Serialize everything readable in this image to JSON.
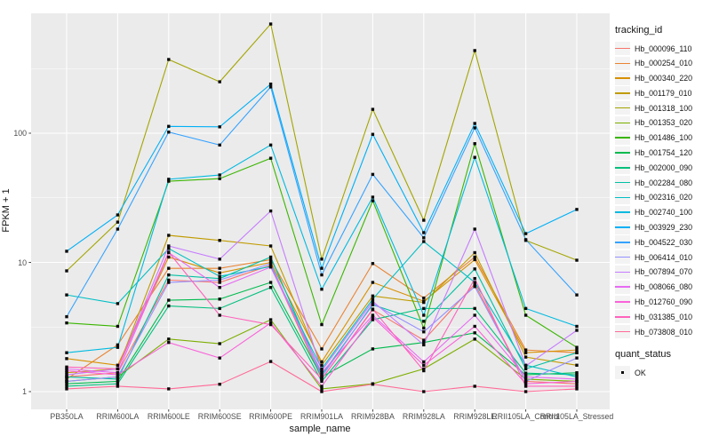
{
  "y_axis": {
    "title": "FPKM + 1",
    "tick_labels": [
      "1",
      "10",
      "100"
    ]
  },
  "x_axis": {
    "title": "sample_name"
  },
  "legend": {
    "tracking_title": "tracking_id",
    "quant_title": "quant_status",
    "quant_items": [
      {
        "label": "OK"
      }
    ]
  },
  "chart_data": {
    "type": "line",
    "title": "",
    "xlabel": "sample_name",
    "ylabel": "FPKM + 1",
    "yscale": "log10",
    "yticks": [
      1,
      10,
      100
    ],
    "ylim": [
      0.73,
      850
    ],
    "grid": true,
    "legend_position": "right",
    "panel_background": "#ebebeb",
    "gridline_color": "#ffffff",
    "point_shape": "filled-square",
    "point_color": "#0a0a0a",
    "categories": [
      "PB350LA",
      "RRIM600LA",
      "RRIM600LE",
      "RRIM600SE",
      "RRIM600PE",
      "RRIM901LA",
      "RRIM928BA",
      "RRIM928LA",
      "RRIM928LE",
      "RRII105LA_Control",
      "RRII105LA_Stressed"
    ],
    "series": [
      {
        "name": "Hb_000096_110",
        "color": "#F8766D",
        "values": [
          1.3,
          1.4,
          7.3,
          7.0,
          9.5,
          1.25,
          4.3,
          2.5,
          6.8,
          1.2,
          1.15
        ]
      },
      {
        "name": "Hb_000254_010",
        "color": "#EA8331",
        "values": [
          1.25,
          2.3,
          9.0,
          9.0,
          10.5,
          2.14,
          9.8,
          5.3,
          11.0,
          2.1,
          2.0
        ]
      },
      {
        "name": "Hb_000340_220",
        "color": "#D89000",
        "values": [
          1.8,
          1.6,
          11.0,
          8.3,
          10.0,
          1.7,
          7.0,
          5.0,
          10.5,
          2.0,
          2.1
        ]
      },
      {
        "name": "Hb_001179_010",
        "color": "#C09B00",
        "values": [
          1.4,
          1.5,
          16.2,
          14.8,
          13.4,
          1.6,
          5.5,
          4.9,
          11.9,
          1.85,
          1.6
        ]
      },
      {
        "name": "Hb_001318_100",
        "color": "#A3A500",
        "values": [
          8.6,
          20.5,
          372,
          250,
          700,
          10.6,
          153,
          21.2,
          436,
          14.8,
          10.4
        ]
      },
      {
        "name": "Hb_001353_020",
        "color": "#7CAE00",
        "values": [
          1.2,
          1.3,
          2.55,
          2.35,
          3.6,
          1.05,
          1.15,
          1.5,
          2.55,
          1.25,
          1.2
        ]
      },
      {
        "name": "Hb_001486_100",
        "color": "#39B600",
        "values": [
          3.4,
          3.2,
          42.5,
          44.5,
          64,
          3.3,
          30,
          3.1,
          83,
          3.9,
          2.2
        ]
      },
      {
        "name": "Hb_001754_120",
        "color": "#00BB4E",
        "values": [
          1.15,
          1.2,
          5.1,
          5.2,
          7.0,
          1.3,
          2.14,
          2.4,
          2.85,
          1.35,
          1.4
        ]
      },
      {
        "name": "Hb_002000_090",
        "color": "#00BF7D",
        "values": [
          1.1,
          1.15,
          4.6,
          4.4,
          6.4,
          1.2,
          3.6,
          4.4,
          4.4,
          1.39,
          1.35
        ]
      },
      {
        "name": "Hb_002284_080",
        "color": "#00C1A3",
        "values": [
          1.3,
          1.25,
          8.0,
          7.5,
          11.0,
          1.35,
          4.7,
          3.5,
          8.9,
          1.5,
          2.0
        ]
      },
      {
        "name": "Hb_002316_020",
        "color": "#00BFC4",
        "values": [
          5.6,
          4.8,
          12.8,
          7.8,
          9.3,
          1.5,
          5.2,
          14.5,
          7.0,
          1.6,
          1.3
        ]
      },
      {
        "name": "Hb_002740_100",
        "color": "#00BAE0",
        "values": [
          2.0,
          2.2,
          44,
          47.5,
          81,
          6.2,
          32,
          3.9,
          65,
          4.4,
          3.2
        ]
      },
      {
        "name": "Hb_003929_230",
        "color": "#00B0F6",
        "values": [
          12.2,
          23.3,
          113,
          112,
          240,
          9.0,
          98,
          17,
          119,
          16.7,
          25.7
        ]
      },
      {
        "name": "Hb_004522_030",
        "color": "#35A2FF",
        "values": [
          3.8,
          18.1,
          102,
          81,
          228,
          8.0,
          48,
          15.5,
          110,
          15.0,
          5.6
        ]
      },
      {
        "name": "Hb_006414_010",
        "color": "#9590FF",
        "values": [
          1.2,
          1.3,
          7.0,
          7.3,
          9.8,
          1.3,
          4.8,
          2.9,
          6.5,
          1.2,
          1.82
        ]
      },
      {
        "name": "Hb_007894_070",
        "color": "#C77CFF",
        "values": [
          1.35,
          1.5,
          13.4,
          10.6,
          25,
          1.45,
          5.0,
          2.3,
          18.1,
          1.58,
          2.98
        ]
      },
      {
        "name": "Hb_008066_080",
        "color": "#E76BF3",
        "values": [
          1.5,
          1.4,
          11.9,
          6.4,
          9.2,
          1.4,
          3.9,
          1.7,
          3.9,
          1.3,
          1.25
        ]
      },
      {
        "name": "Hb_012760_090",
        "color": "#FA62DB",
        "values": [
          1.45,
          1.35,
          2.4,
          1.82,
          3.4,
          1.1,
          3.78,
          1.6,
          3.2,
          1.15,
          1.2
        ]
      },
      {
        "name": "Hb_031385_010",
        "color": "#FF62BC",
        "values": [
          1.55,
          1.5,
          12.0,
          3.9,
          3.3,
          1.25,
          4.35,
          1.45,
          7.5,
          1.1,
          1.1
        ]
      },
      {
        "name": "Hb_073808_010",
        "color": "#FF6A98",
        "values": [
          1.05,
          1.1,
          1.05,
          1.14,
          1.71,
          1.0,
          1.14,
          1.0,
          1.1,
          1.0,
          1.05
        ]
      }
    ]
  }
}
